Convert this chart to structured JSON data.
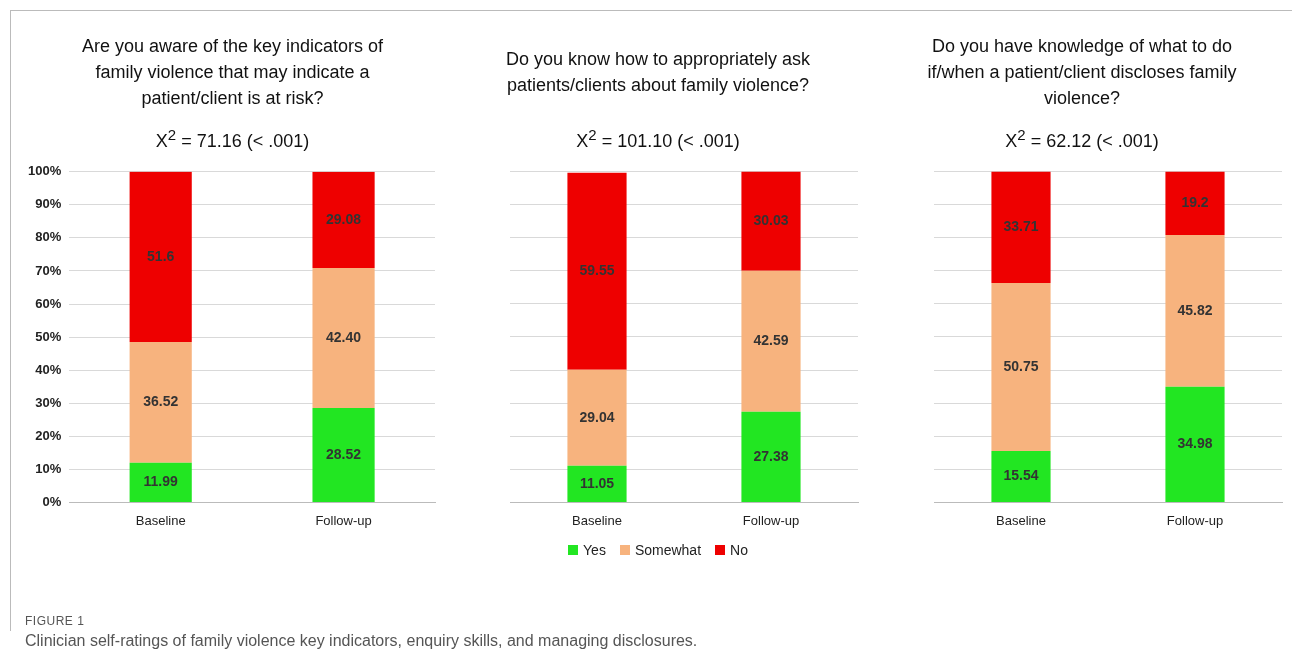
{
  "chart_data": [
    {
      "type": "bar",
      "title": "Are you aware of the key indicators of family violence that may indicate a patient/client is at risk?",
      "subtitle": "X$^{2}$ = 71.16 (< .001)",
      "categories": [
        "Baseline",
        "Follow-up"
      ],
      "stacked": true,
      "grid": "y",
      "legend": false,
      "ylim": [
        0,
        100
      ],
      "yticks": [
        {
          "value": 0,
          "label": "0%"
        },
        {
          "value": 10,
          "label": "10%"
        },
        {
          "value": 20,
          "label": "20%"
        },
        {
          "value": 30,
          "label": "30%"
        },
        {
          "value": 40,
          "label": "40%"
        },
        {
          "value": 50,
          "label": "50%"
        },
        {
          "value": 60,
          "label": "60%"
        },
        {
          "value": 70,
          "label": "70%"
        },
        {
          "value": 80,
          "label": "80%"
        },
        {
          "value": 90,
          "label": "90%"
        },
        {
          "value": 100,
          "label": "100%"
        }
      ],
      "series": [
        {
          "color": "#22e622",
          "values": [
            11.99,
            28.52
          ],
          "value_labels": [
            "11.99",
            "28.52"
          ]
        },
        {
          "color": "#f7b37e",
          "values": [
            36.52,
            42.4
          ],
          "value_labels": [
            "36.52",
            "42.40"
          ]
        },
        {
          "color": "#ee0000",
          "values": [
            51.6,
            29.08
          ],
          "value_labels": [
            "51.6",
            "29.08"
          ]
        }
      ],
      "annotations": [
        "FIGURE 1",
        "Clinician self-ratings of family violence key indicators, enquiry skills, and managing disclosures."
      ]
    },
    {
      "type": "bar",
      "title": "Do you know how to appropriately ask patients/clients about family violence?",
      "subtitle": "X$^{2}$ = 101.10 (< .001)",
      "categories": [
        "Baseline",
        "Follow-up"
      ],
      "stacked": true,
      "grid": "y",
      "legend": "bottom",
      "tick_labels": "x",
      "ylim": [
        0,
        100
      ],
      "yticks": [
        0,
        10,
        20,
        30,
        40,
        50,
        60,
        70,
        80,
        90,
        100
      ],
      "series": [
        {
          "name": "Yes",
          "color": "#22e622",
          "values": [
            11.05,
            27.38
          ],
          "value_labels": [
            "11.05",
            "27.38"
          ]
        },
        {
          "name": "Somewhat",
          "color": "#f7b37e",
          "values": [
            29.04,
            42.59
          ],
          "value_labels": [
            "29.04",
            "42.59"
          ]
        },
        {
          "name": "No",
          "color": "#ee0000",
          "values": [
            59.55,
            30.03
          ],
          "value_labels": [
            "59.55",
            "30.03"
          ]
        }
      ]
    },
    {
      "type": "bar",
      "title": "Do you have knowledge of what to do if/when a patient/client discloses family violence?",
      "subtitle": "X$^{2}$ = 62.12 (< .001)",
      "categories": [
        "Baseline",
        "Follow-up"
      ],
      "stacked": true,
      "grid": "y",
      "legend": false,
      "tick_labels": "x",
      "ylim": [
        0,
        100
      ],
      "yticks": [
        0,
        10,
        20,
        30,
        40,
        50,
        60,
        70,
        80,
        90,
        100
      ],
      "series": [
        {
          "color": "#22e622",
          "values": [
            15.54,
            34.98
          ],
          "value_labels": [
            "15.54",
            "34.98"
          ]
        },
        {
          "color": "#f7b37e",
          "values": [
            50.75,
            45.82
          ],
          "value_labels": [
            "50.75",
            "45.82"
          ]
        },
        {
          "color": "#ee0000",
          "values": [
            33.71,
            19.2
          ],
          "value_labels": [
            "33.71",
            "19.2"
          ]
        }
      ]
    }
  ]
}
